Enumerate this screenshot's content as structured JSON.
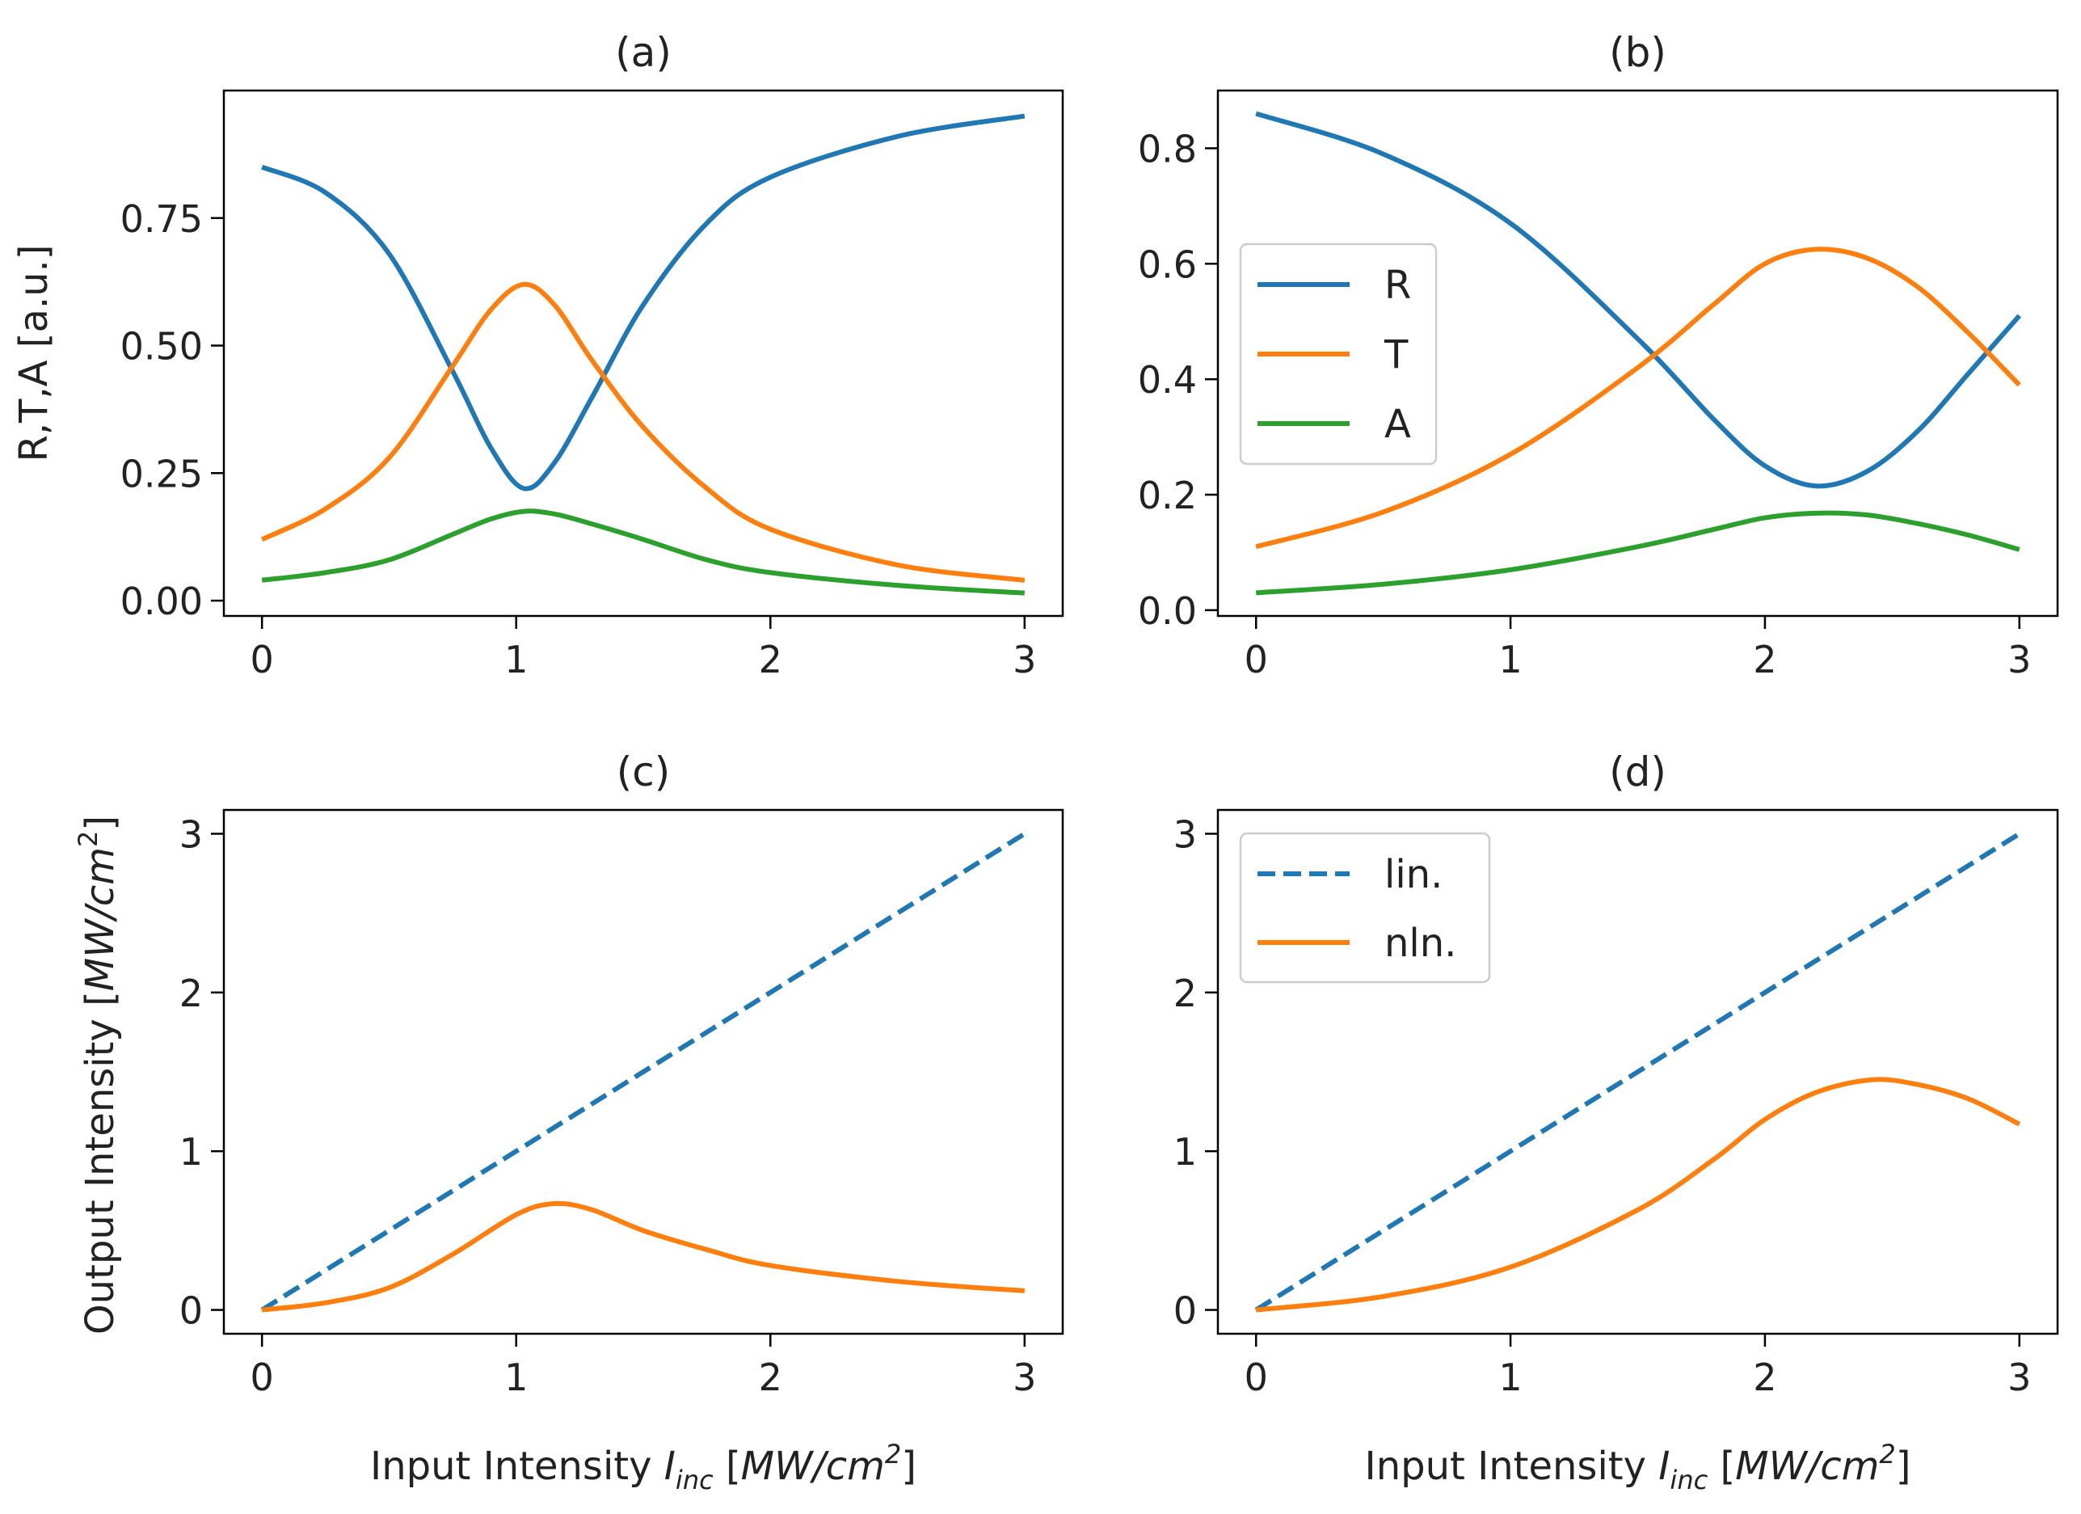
{
  "chart_data": [
    {
      "panel": "a",
      "type": "line",
      "title": "(a)",
      "xlabel": "",
      "ylabel": "R,T,A [a.u.]",
      "xlim": [
        -0.15,
        3.15
      ],
      "ylim": [
        -0.03,
        1.0
      ],
      "xticks": [
        0,
        1,
        2,
        3
      ],
      "xtick_labels": [
        "0",
        "1",
        "2",
        "3"
      ],
      "yticks": [
        0,
        0.25,
        0.5,
        0.75
      ],
      "ytick_labels": [
        "0.00",
        "0.25",
        "0.50",
        "0.75"
      ],
      "legend": null,
      "series": [
        {
          "name": "R",
          "color": "#1f77b4",
          "dash": false,
          "x": [
            0,
            0.25,
            0.5,
            0.75,
            0.9,
            1.03,
            1.15,
            1.3,
            1.5,
            1.75,
            2,
            2.5,
            3
          ],
          "y": [
            0.85,
            0.8,
            0.68,
            0.45,
            0.3,
            0.22,
            0.27,
            0.4,
            0.58,
            0.74,
            0.83,
            0.91,
            0.95
          ]
        },
        {
          "name": "T",
          "color": "#ff7f0e",
          "dash": false,
          "x": [
            0,
            0.25,
            0.5,
            0.75,
            0.9,
            1.03,
            1.15,
            1.3,
            1.5,
            1.75,
            2,
            2.5,
            3
          ],
          "y": [
            0.12,
            0.18,
            0.28,
            0.46,
            0.57,
            0.62,
            0.58,
            0.47,
            0.34,
            0.22,
            0.14,
            0.07,
            0.04
          ]
        },
        {
          "name": "A",
          "color": "#2ca02c",
          "dash": false,
          "x": [
            0,
            0.25,
            0.5,
            0.75,
            0.9,
            1.03,
            1.15,
            1.3,
            1.5,
            1.75,
            2,
            2.5,
            3
          ],
          "y": [
            0.04,
            0.055,
            0.08,
            0.13,
            0.16,
            0.175,
            0.17,
            0.15,
            0.12,
            0.08,
            0.055,
            0.03,
            0.015
          ]
        }
      ]
    },
    {
      "panel": "b",
      "type": "line",
      "title": "(b)",
      "xlabel": "",
      "ylabel": "",
      "xlim": [
        -0.15,
        3.15
      ],
      "ylim": [
        -0.01,
        0.9
      ],
      "xticks": [
        0,
        1,
        2,
        3
      ],
      "xtick_labels": [
        "0",
        "1",
        "2",
        "3"
      ],
      "yticks": [
        0,
        0.2,
        0.4,
        0.6,
        0.8
      ],
      "ytick_labels": [
        "0.0",
        "0.2",
        "0.4",
        "0.6",
        "0.8"
      ],
      "legend": "center-left",
      "series": [
        {
          "name": "R",
          "color": "#1f77b4",
          "dash": false,
          "x": [
            0,
            0.5,
            1,
            1.5,
            1.8,
            2.0,
            2.2,
            2.4,
            2.6,
            2.8,
            3
          ],
          "y": [
            0.86,
            0.79,
            0.67,
            0.47,
            0.33,
            0.25,
            0.215,
            0.24,
            0.31,
            0.41,
            0.51
          ]
        },
        {
          "name": "T",
          "color": "#ff7f0e",
          "dash": false,
          "x": [
            0,
            0.5,
            1,
            1.5,
            1.8,
            2.0,
            2.2,
            2.4,
            2.6,
            2.8,
            3
          ],
          "y": [
            0.11,
            0.17,
            0.27,
            0.42,
            0.53,
            0.6,
            0.625,
            0.61,
            0.56,
            0.48,
            0.39
          ]
        },
        {
          "name": "A",
          "color": "#2ca02c",
          "dash": false,
          "x": [
            0,
            0.5,
            1,
            1.5,
            1.8,
            2.0,
            2.2,
            2.4,
            2.6,
            2.8,
            3
          ],
          "y": [
            0.03,
            0.045,
            0.07,
            0.11,
            0.14,
            0.16,
            0.168,
            0.165,
            0.15,
            0.13,
            0.105
          ]
        }
      ]
    },
    {
      "panel": "c",
      "type": "line",
      "title": "(c)",
      "xlabel": {
        "main": "Input Intensity ",
        "var": "I",
        "sub": "inc",
        "unit_open": " [",
        "unit": "MW/cm",
        "sup": "2",
        "unit_close": "]"
      },
      "ylabel": {
        "main": "Output Intensity [",
        "unit": "MW/cm",
        "sup": "2",
        "close": "]"
      },
      "xlim": [
        -0.15,
        3.15
      ],
      "ylim": [
        -0.15,
        3.15
      ],
      "xticks": [
        0,
        1,
        2,
        3
      ],
      "xtick_labels": [
        "0",
        "1",
        "2",
        "3"
      ],
      "yticks": [
        0,
        1,
        2,
        3
      ],
      "ytick_labels": [
        "0",
        "1",
        "2",
        "3"
      ],
      "legend": null,
      "series": [
        {
          "name": "lin.",
          "color": "#1f77b4",
          "dash": true,
          "x": [
            0,
            3
          ],
          "y": [
            0,
            3
          ]
        },
        {
          "name": "nln.",
          "color": "#ff7f0e",
          "dash": false,
          "x": [
            0,
            0.25,
            0.5,
            0.75,
            1.0,
            1.15,
            1.3,
            1.5,
            1.75,
            2,
            2.5,
            3
          ],
          "y": [
            0,
            0.045,
            0.14,
            0.35,
            0.6,
            0.67,
            0.63,
            0.5,
            0.38,
            0.28,
            0.18,
            0.12
          ]
        }
      ]
    },
    {
      "panel": "d",
      "type": "line",
      "title": "(d)",
      "xlabel": {
        "main": "Input Intensity ",
        "var": "I",
        "sub": "inc",
        "unit_open": " [",
        "unit": "MW/cm",
        "sup": "2",
        "unit_close": "]"
      },
      "ylabel": "",
      "xlim": [
        -0.15,
        3.15
      ],
      "ylim": [
        -0.15,
        3.15
      ],
      "xticks": [
        0,
        1,
        2,
        3
      ],
      "xtick_labels": [
        "0",
        "1",
        "2",
        "3"
      ],
      "yticks": [
        0,
        1,
        2,
        3
      ],
      "ytick_labels": [
        "0",
        "1",
        "2",
        "3"
      ],
      "legend": "top-left",
      "series": [
        {
          "name": "lin.",
          "color": "#1f77b4",
          "dash": true,
          "x": [
            0,
            3
          ],
          "y": [
            0,
            3
          ]
        },
        {
          "name": "nln.",
          "color": "#ff7f0e",
          "dash": false,
          "x": [
            0,
            0.5,
            1,
            1.5,
            1.8,
            2,
            2.2,
            2.42,
            2.6,
            2.8,
            3
          ],
          "y": [
            0,
            0.085,
            0.27,
            0.63,
            0.95,
            1.2,
            1.37,
            1.45,
            1.42,
            1.33,
            1.17
          ]
        }
      ]
    }
  ]
}
